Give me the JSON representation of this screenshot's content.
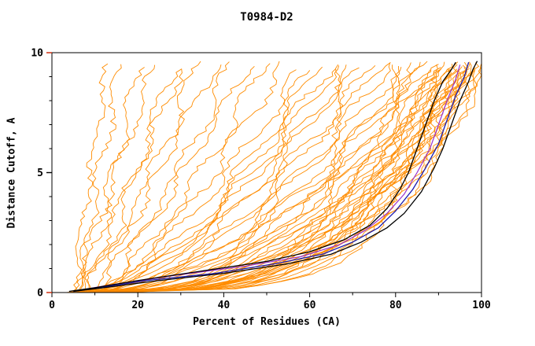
{
  "chart_data": {
    "type": "line",
    "title": "T0984-D2",
    "xlabel": "Percent of Residues (CA)",
    "ylabel": "Distance Cutoff, A",
    "xlim": [
      0,
      100
    ],
    "ylim": [
      0,
      10
    ],
    "grid": false,
    "legend": "none",
    "x_major_ticks": [
      0,
      20,
      40,
      60,
      80,
      100
    ],
    "x_tick_labels": [
      "0",
      "20",
      "40",
      "60",
      "80",
      "100"
    ],
    "x_minor_ticks": [
      10,
      30,
      50,
      70,
      90
    ],
    "y_major_ticks": [
      0,
      5,
      10
    ],
    "y_tick_labels": [
      "0",
      "5",
      "10"
    ],
    "y_minor_ticks": [
      1,
      2,
      3,
      4,
      6,
      7,
      8,
      9
    ],
    "colors": {
      "axis": "#000000",
      "ensemble": "#FF8C00",
      "end_tick": "#cc2200"
    },
    "ensemble_note": "each entry = [x_at_cutoff0, x_at_cutoff_max, shape_exponent, wiggle_amp, wiggle_phase] for one orange model curve",
    "ensemble": [
      [
        5,
        13,
        1.1,
        1.5,
        0.0
      ],
      [
        6,
        16,
        1.0,
        2.0,
        1.3
      ],
      [
        7,
        20,
        0.9,
        2.5,
        2.1
      ],
      [
        5,
        24,
        1.0,
        2.0,
        0.7
      ],
      [
        8,
        28,
        0.85,
        3.0,
        2.8
      ],
      [
        6,
        30,
        0.95,
        2.0,
        4.0
      ],
      [
        9,
        34,
        0.8,
        3.0,
        1.0
      ],
      [
        7,
        38,
        0.9,
        2.5,
        3.3
      ],
      [
        10,
        42,
        0.75,
        3.0,
        0.4
      ],
      [
        8,
        46,
        0.85,
        2.0,
        2.2
      ],
      [
        12,
        50,
        0.8,
        3.0,
        1.7
      ],
      [
        9,
        54,
        0.7,
        3.0,
        5.0
      ],
      [
        6,
        58,
        0.65,
        3.0,
        0.2
      ],
      [
        8,
        60,
        0.6,
        3.5,
        1.1
      ],
      [
        10,
        62,
        0.62,
        3.0,
        2.0
      ],
      [
        7,
        64,
        0.58,
        4.0,
        2.9
      ],
      [
        9,
        66,
        0.6,
        3.0,
        3.8
      ],
      [
        11,
        68,
        0.55,
        4.0,
        4.7
      ],
      [
        6,
        70,
        0.57,
        3.0,
        5.6
      ],
      [
        8,
        72,
        0.52,
        4.0,
        0.5
      ],
      [
        10,
        74,
        0.55,
        3.0,
        1.4
      ],
      [
        12,
        76,
        0.5,
        4.0,
        2.3
      ],
      [
        7,
        78,
        0.5,
        3.5,
        3.2
      ],
      [
        9,
        80,
        0.48,
        4.0,
        4.1
      ],
      [
        11,
        82,
        0.45,
        3.0,
        5.0
      ],
      [
        8,
        84,
        0.47,
        4.0,
        5.9
      ],
      [
        10,
        86,
        0.44,
        3.5,
        0.8
      ],
      [
        12,
        88,
        0.42,
        4.0,
        1.7
      ],
      [
        6,
        90,
        0.4,
        3.0,
        0.3
      ],
      [
        8,
        90,
        0.38,
        3.0,
        1.2
      ],
      [
        10,
        91,
        0.36,
        3.5,
        2.1
      ],
      [
        7,
        92,
        0.35,
        3.0,
        3.0
      ],
      [
        9,
        92,
        0.37,
        4.0,
        3.9
      ],
      [
        11,
        93,
        0.33,
        3.0,
        4.8
      ],
      [
        8,
        93,
        0.35,
        3.5,
        5.7
      ],
      [
        10,
        94,
        0.32,
        3.0,
        0.6
      ],
      [
        12,
        94,
        0.34,
        4.0,
        1.5
      ],
      [
        7,
        95,
        0.3,
        3.0,
        2.4
      ],
      [
        9,
        95,
        0.32,
        3.5,
        3.3
      ],
      [
        11,
        96,
        0.3,
        3.0,
        4.2
      ],
      [
        8,
        96,
        0.31,
        4.0,
        5.1
      ],
      [
        10,
        97,
        0.28,
        3.0,
        0.0
      ],
      [
        12,
        97,
        0.3,
        3.5,
        0.9
      ],
      [
        9,
        98,
        0.27,
        3.0,
        1.8
      ],
      [
        11,
        98,
        0.29,
        4.0,
        2.7
      ],
      [
        13,
        99,
        0.26,
        3.0,
        3.6
      ],
      [
        10,
        99,
        0.28,
        3.5,
        4.5
      ],
      [
        12,
        100,
        0.25,
        3.0,
        5.4
      ],
      [
        14,
        100,
        0.27,
        3.0,
        0.2
      ],
      [
        9,
        97,
        0.3,
        4.0,
        2.6
      ],
      [
        13,
        95,
        0.33,
        3.0,
        4.4
      ],
      [
        15,
        93,
        0.36,
        3.5,
        1.9
      ],
      [
        6,
        88,
        0.45,
        4.0,
        3.1
      ],
      [
        14,
        91,
        0.4,
        3.0,
        5.2
      ],
      [
        16,
        89,
        0.42,
        3.5,
        2.5
      ],
      [
        5,
        85,
        0.5,
        4.0,
        4.6
      ],
      [
        13,
        87,
        0.46,
        3.0,
        0.7
      ],
      [
        15,
        96,
        0.31,
        3.0,
        3.7
      ]
    ],
    "reference_series": [
      {
        "name": "model-purple",
        "color": "#9932CC",
        "width": 1.2,
        "points": [
          [
            5,
            0.05
          ],
          [
            13,
            0.3
          ],
          [
            28,
            0.7
          ],
          [
            45,
            1.1
          ],
          [
            58,
            1.5
          ],
          [
            67,
            2.0
          ],
          [
            73,
            2.6
          ],
          [
            78,
            3.3
          ],
          [
            82,
            4.1
          ],
          [
            85,
            5.0
          ],
          [
            88,
            6.0
          ],
          [
            90,
            7.0
          ],
          [
            92,
            8.0
          ],
          [
            94,
            8.9
          ],
          [
            95,
            9.5
          ]
        ]
      },
      {
        "name": "model-blue",
        "color": "#1a1aae",
        "width": 1.3,
        "points": [
          [
            5,
            0.05
          ],
          [
            11,
            0.2
          ],
          [
            22,
            0.5
          ],
          [
            38,
            0.8
          ],
          [
            52,
            1.2
          ],
          [
            63,
            1.6
          ],
          [
            70,
            2.1
          ],
          [
            76,
            2.7
          ],
          [
            80,
            3.4
          ],
          [
            84,
            4.3
          ],
          [
            87,
            5.2
          ],
          [
            90,
            6.2
          ],
          [
            92,
            7.2
          ],
          [
            94,
            8.2
          ],
          [
            96,
            9.0
          ],
          [
            97,
            9.6
          ]
        ]
      },
      {
        "name": "model-black-left",
        "color": "#000000",
        "width": 1.3,
        "points": [
          [
            4,
            0.05
          ],
          [
            10,
            0.2
          ],
          [
            20,
            0.5
          ],
          [
            35,
            0.9
          ],
          [
            50,
            1.3
          ],
          [
            60,
            1.7
          ],
          [
            68,
            2.2
          ],
          [
            74,
            2.8
          ],
          [
            78,
            3.5
          ],
          [
            81,
            4.3
          ],
          [
            83,
            5.0
          ],
          [
            85,
            6.0
          ],
          [
            87,
            7.0
          ],
          [
            89,
            8.0
          ],
          [
            91,
            8.8
          ],
          [
            93,
            9.3
          ],
          [
            94,
            9.6
          ]
        ]
      },
      {
        "name": "model-black-right",
        "color": "#000000",
        "width": 1.3,
        "points": [
          [
            5,
            0.05
          ],
          [
            12,
            0.2
          ],
          [
            25,
            0.5
          ],
          [
            40,
            0.8
          ],
          [
            55,
            1.2
          ],
          [
            65,
            1.6
          ],
          [
            72,
            2.1
          ],
          [
            78,
            2.7
          ],
          [
            82,
            3.3
          ],
          [
            86,
            4.2
          ],
          [
            89,
            5.2
          ],
          [
            91,
            6.0
          ],
          [
            93,
            7.0
          ],
          [
            95,
            8.0
          ],
          [
            97,
            8.8
          ],
          [
            98,
            9.3
          ],
          [
            99,
            9.65
          ]
        ]
      }
    ]
  }
}
